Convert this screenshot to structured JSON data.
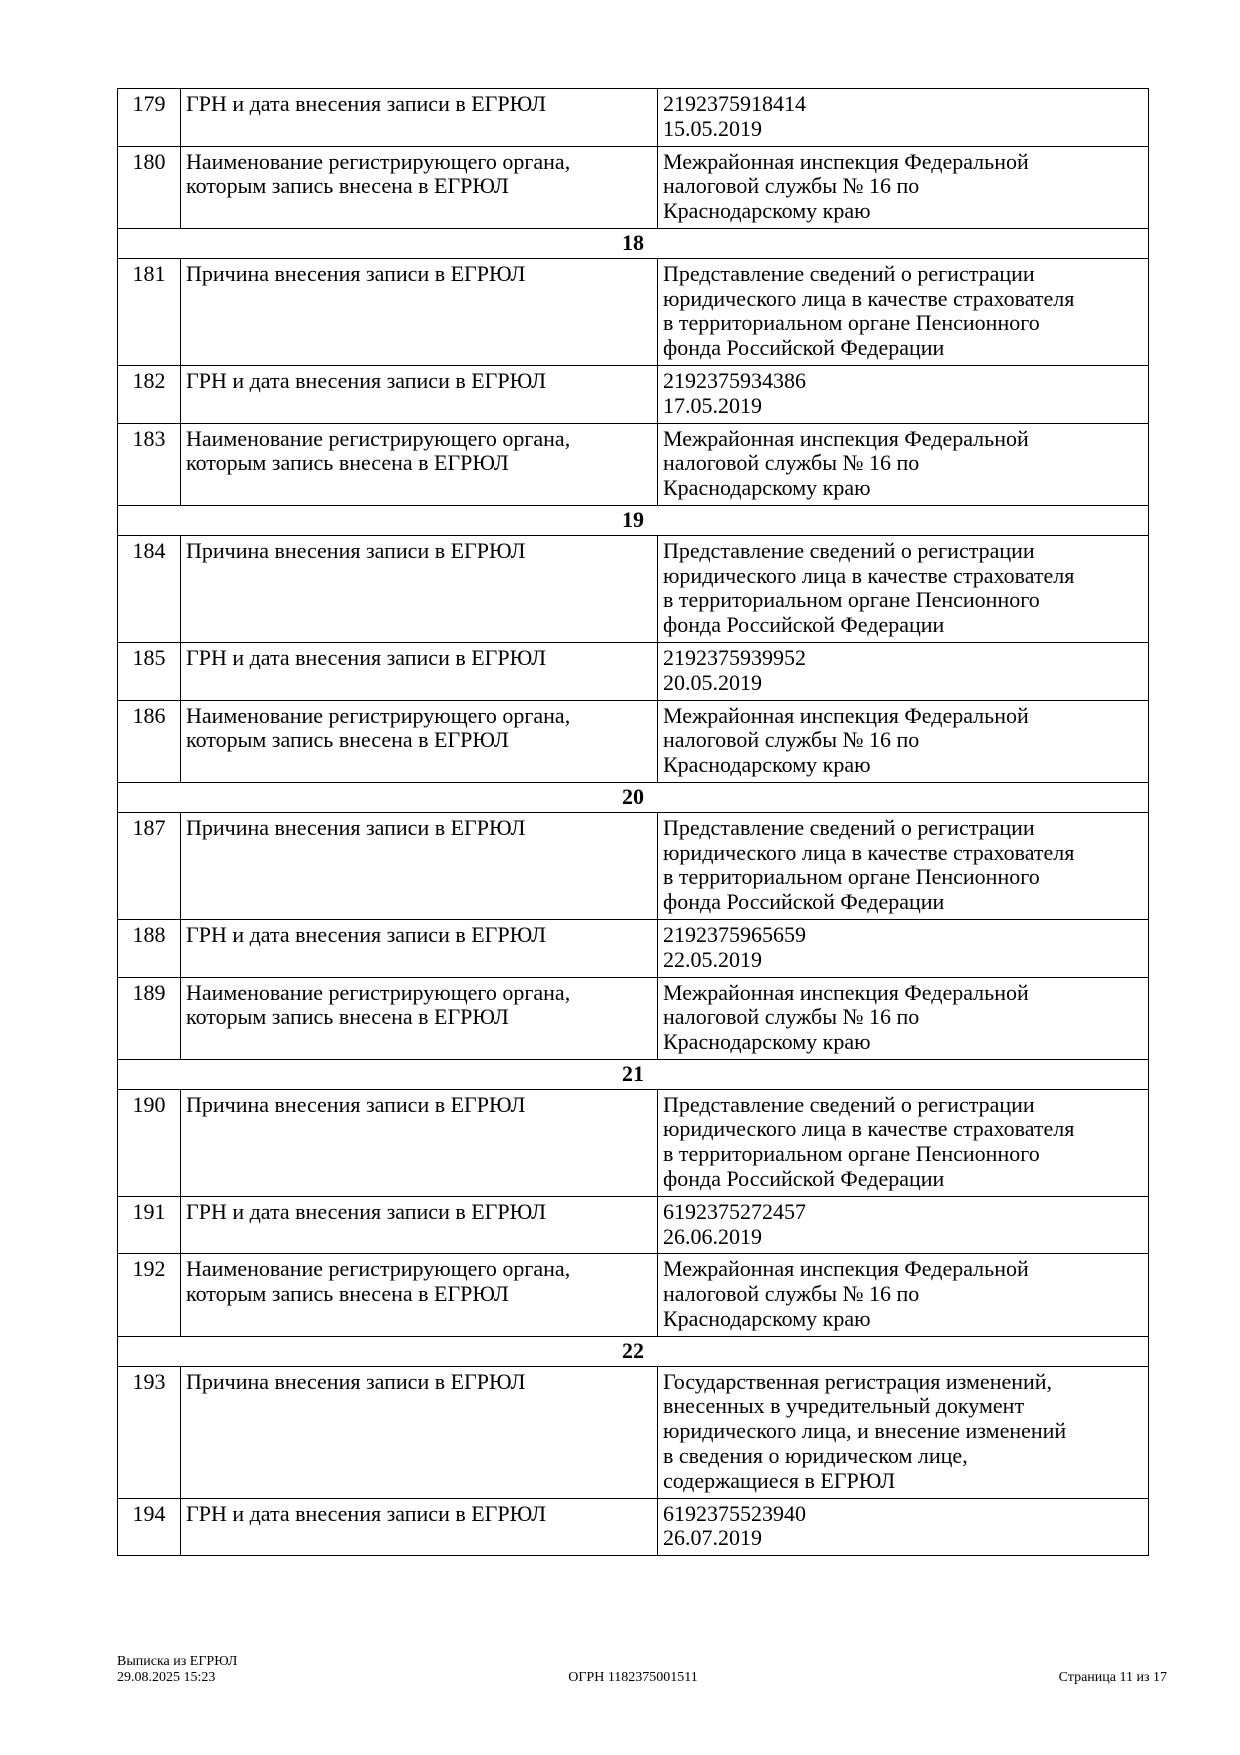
{
  "table": {
    "rows": [
      {
        "type": "row",
        "num": "179",
        "name": [
          "ГРН и дата внесения записи в ЕГРЮЛ"
        ],
        "value": [
          "2192375918414",
          "15.05.2019"
        ]
      },
      {
        "type": "row",
        "num": "180",
        "name": [
          "Наименование регистрирующего органа,",
          "которым запись внесена в ЕГРЮЛ"
        ],
        "value": [
          "Межрайонная инспекция Федеральной",
          "налоговой службы № 16 по",
          "Краснодарскому краю"
        ]
      },
      {
        "type": "section",
        "num": "18"
      },
      {
        "type": "row",
        "num": "181",
        "name": [
          "Причина внесения записи в ЕГРЮЛ"
        ],
        "value": [
          "Представление сведений о регистрации",
          "юридического лица в качестве страхователя",
          "в территориальном органе Пенсионного",
          "фонда Российской Федерации"
        ]
      },
      {
        "type": "row",
        "num": "182",
        "name": [
          "ГРН и дата внесения записи в ЕГРЮЛ"
        ],
        "value": [
          "2192375934386",
          "17.05.2019"
        ]
      },
      {
        "type": "row",
        "num": "183",
        "name": [
          "Наименование регистрирующего органа,",
          "которым запись внесена в ЕГРЮЛ"
        ],
        "value": [
          "Межрайонная инспекция Федеральной",
          "налоговой службы № 16 по",
          "Краснодарскому краю"
        ]
      },
      {
        "type": "section",
        "num": "19"
      },
      {
        "type": "row",
        "num": "184",
        "name": [
          "Причина внесения записи в ЕГРЮЛ"
        ],
        "value": [
          "Представление сведений о регистрации",
          "юридического лица в качестве страхователя",
          "в территориальном органе Пенсионного",
          "фонда Российской Федерации"
        ]
      },
      {
        "type": "row",
        "num": "185",
        "name": [
          "ГРН и дата внесения записи в ЕГРЮЛ"
        ],
        "value": [
          "2192375939952",
          "20.05.2019"
        ]
      },
      {
        "type": "row",
        "num": "186",
        "name": [
          "Наименование регистрирующего органа,",
          "которым запись внесена в ЕГРЮЛ"
        ],
        "value": [
          "Межрайонная инспекция Федеральной",
          "налоговой службы № 16 по",
          "Краснодарскому краю"
        ]
      },
      {
        "type": "section",
        "num": "20"
      },
      {
        "type": "row",
        "num": "187",
        "name": [
          "Причина внесения записи в ЕГРЮЛ"
        ],
        "value": [
          "Представление сведений о регистрации",
          "юридического лица в качестве страхователя",
          "в территориальном органе Пенсионного",
          "фонда Российской Федерации"
        ]
      },
      {
        "type": "row",
        "num": "188",
        "name": [
          "ГРН и дата внесения записи в ЕГРЮЛ"
        ],
        "value": [
          "2192375965659",
          "22.05.2019"
        ]
      },
      {
        "type": "row",
        "num": "189",
        "name": [
          "Наименование регистрирующего органа,",
          "которым запись внесена в ЕГРЮЛ"
        ],
        "value": [
          "Межрайонная инспекция Федеральной",
          "налоговой службы № 16 по",
          "Краснодарскому краю"
        ]
      },
      {
        "type": "section",
        "num": "21"
      },
      {
        "type": "row",
        "num": "190",
        "name": [
          "Причина внесения записи в ЕГРЮЛ"
        ],
        "value": [
          "Представление сведений о регистрации",
          "юридического лица в качестве страхователя",
          "в территориальном органе Пенсионного",
          "фонда Российской Федерации"
        ]
      },
      {
        "type": "row",
        "num": "191",
        "name": [
          "ГРН и дата внесения записи в ЕГРЮЛ"
        ],
        "value": [
          "6192375272457",
          "26.06.2019"
        ]
      },
      {
        "type": "row",
        "num": "192",
        "name": [
          "Наименование регистрирующего органа,",
          "которым запись внесена в ЕГРЮЛ"
        ],
        "value": [
          "Межрайонная инспекция Федеральной",
          "налоговой службы № 16 по",
          "Краснодарскому краю"
        ]
      },
      {
        "type": "section",
        "num": "22"
      },
      {
        "type": "row",
        "num": "193",
        "name": [
          "Причина внесения записи в ЕГРЮЛ"
        ],
        "value": [
          "Государственная регистрация изменений,",
          "внесенных в учредительный документ",
          "юридического лица, и внесение изменений",
          "в сведения о юридическом лице,",
          "содержащиеся в ЕГРЮЛ"
        ]
      },
      {
        "type": "row",
        "num": "194",
        "name": [
          "ГРН и дата внесения записи в ЕГРЮЛ"
        ],
        "value": [
          "6192375523940",
          "26.07.2019"
        ]
      }
    ]
  },
  "footer": {
    "doc_title": "Выписка из ЕГРЮЛ",
    "datetime": "29.08.2025 15:23",
    "ogrn": "ОГРН 1182375001511",
    "page": "Страница 11 из 17"
  }
}
